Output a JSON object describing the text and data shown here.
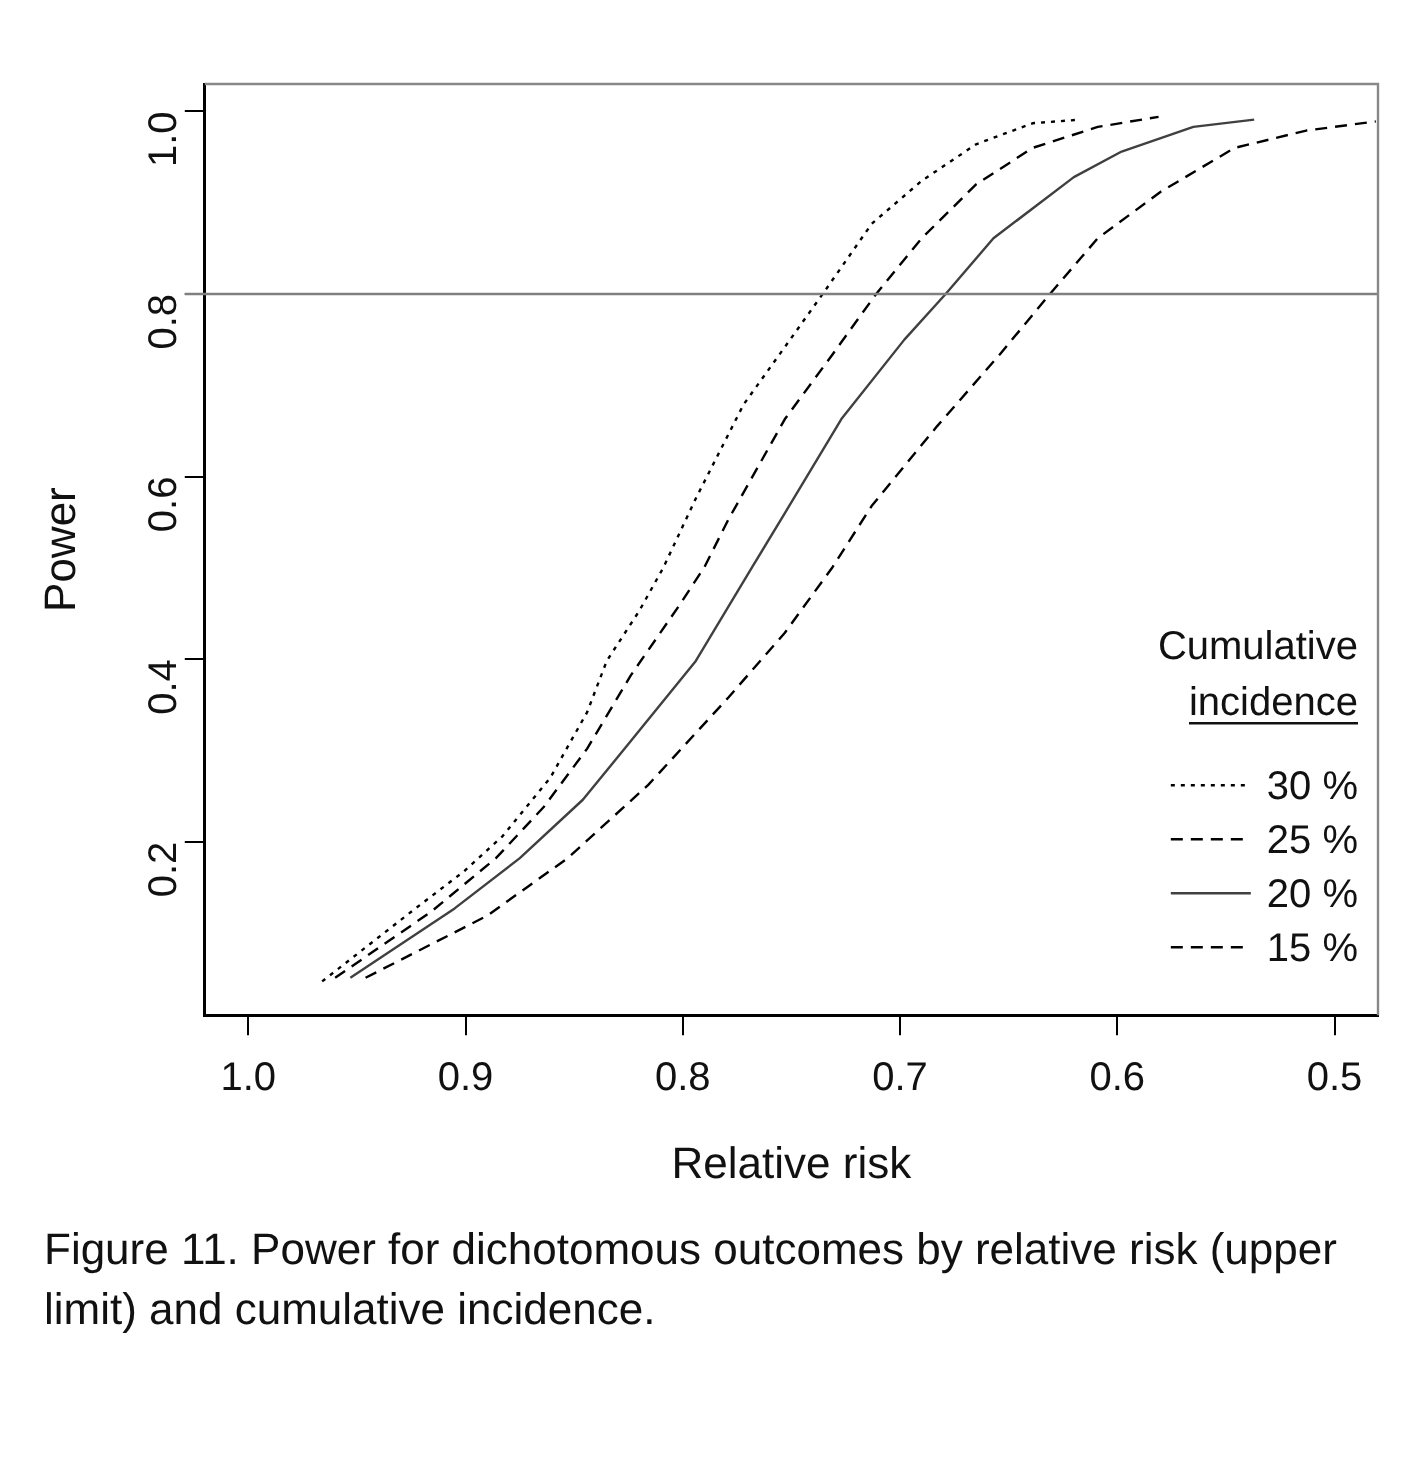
{
  "chart_data": {
    "type": "line",
    "xlabel": "Relative risk",
    "ylabel": "Power",
    "legend_title": "Cumulative incidence",
    "legend": "bottom right",
    "grid": false,
    "marker": "none",
    "xlim": [
      1.02,
      0.48
    ],
    "xticks": [
      {
        "value": 1,
        "label": "1.0"
      },
      0.9,
      0.8,
      0.7,
      0.6,
      0.5
    ],
    "ylim": [
      0.01,
      1.03
    ],
    "yticks": [
      0.2,
      0.4,
      0.6,
      0.8,
      {
        "value": 1,
        "label": "1.0"
      }
    ],
    "ref_lines": [
      {
        "axis": "y",
        "value": 0.8,
        "color": "#808080"
      }
    ],
    "annotations": [
      "Figure 11. Power for dichotomous outcomes by relative risk (upper limit) and cumulative incidence."
    ],
    "series": [
      {
        "name": "30 %",
        "color": "#000000",
        "line_style": "dotted",
        "x": [
          0.966,
          0.923,
          0.901,
          0.883,
          0.861,
          0.844,
          0.835,
          0.82,
          0.809,
          0.794,
          0.772,
          0.753,
          0.735,
          0.713,
          0.69,
          0.665,
          0.639,
          0.617
        ],
        "values": [
          0.047,
          0.127,
          0.167,
          0.206,
          0.27,
          0.342,
          0.398,
          0.453,
          0.5,
          0.576,
          0.679,
          0.742,
          0.802,
          0.877,
          0.924,
          0.964,
          0.987,
          0.991
        ]
      },
      {
        "name": "25 %",
        "color": "#000000",
        "line_style": "dashed",
        "x": [
          0.96,
          0.916,
          0.886,
          0.864,
          0.844,
          0.824,
          0.801,
          0.79,
          0.779,
          0.753,
          0.731,
          0.711,
          0.69,
          0.665,
          0.639,
          0.609,
          0.581
        ],
        "values": [
          0.051,
          0.123,
          0.182,
          0.238,
          0.302,
          0.382,
          0.461,
          0.501,
          0.553,
          0.663,
          0.734,
          0.8,
          0.861,
          0.92,
          0.96,
          0.983,
          0.994
        ]
      },
      {
        "name": "20 %",
        "color": "#404040",
        "line_style": "solid",
        "x": [
          0.953,
          0.905,
          0.875,
          0.846,
          0.824,
          0.794,
          0.768,
          0.753,
          0.727,
          0.698,
          0.679,
          0.657,
          0.62,
          0.598,
          0.565,
          0.537
        ],
        "values": [
          0.051,
          0.127,
          0.182,
          0.246,
          0.31,
          0.398,
          0.501,
          0.56,
          0.663,
          0.75,
          0.8,
          0.861,
          0.928,
          0.956,
          0.983,
          0.991
        ]
      },
      {
        "name": "15 %",
        "color": "#000000",
        "line_style": "dashed",
        "x": [
          0.946,
          0.89,
          0.853,
          0.816,
          0.779,
          0.753,
          0.731,
          0.713,
          0.683,
          0.654,
          0.631,
          0.609,
          0.58,
          0.546,
          0.513,
          0.481
        ],
        "values": [
          0.051,
          0.119,
          0.182,
          0.262,
          0.358,
          0.429,
          0.501,
          0.568,
          0.655,
          0.734,
          0.8,
          0.861,
          0.912,
          0.96,
          0.979,
          0.989
        ]
      }
    ]
  }
}
